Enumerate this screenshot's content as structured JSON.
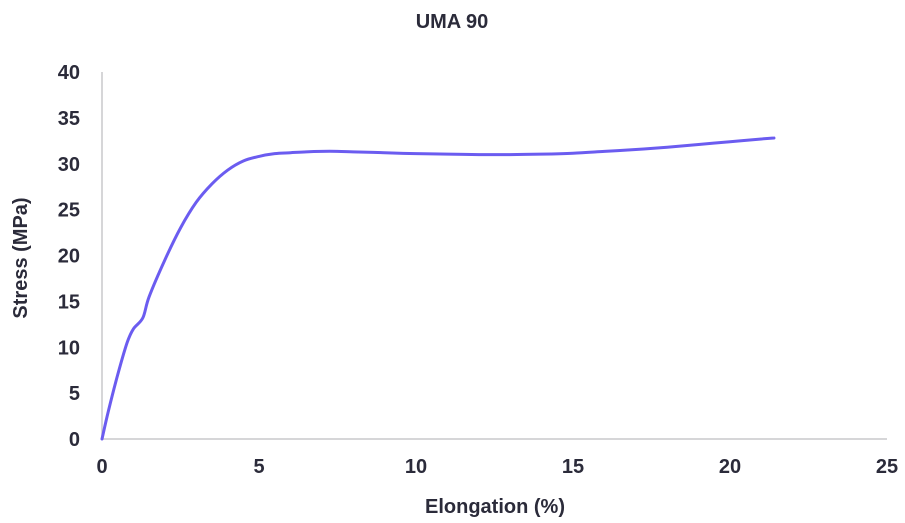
{
  "chart_data": {
    "type": "line",
    "title": "UMA 90",
    "xlabel": "Elongation (%)",
    "ylabel": "Stress (MPa)",
    "xlim": [
      0,
      25
    ],
    "ylim": [
      0,
      40
    ],
    "xticks": [
      "0",
      "5",
      "10",
      "15",
      "20",
      "25"
    ],
    "yticks": [
      "0",
      "5",
      "10",
      "15",
      "20",
      "25",
      "30",
      "35",
      "40"
    ],
    "grid": false,
    "legend": "none",
    "line_color": "#6b5cf0",
    "axis_color": "#c8c8cc",
    "series": [
      {
        "x": [
          0,
          0.2,
          0.5,
          0.8,
          1.0,
          1.3,
          1.5,
          2.0,
          2.5,
          3.0,
          3.5,
          4.0,
          4.5,
          5.0,
          5.5,
          6.0,
          6.5,
          7.0,
          7.5,
          8.0,
          9.0,
          10.0,
          11.0,
          12.0,
          13.0,
          14.0,
          15.0,
          16.0,
          17.0,
          18.0,
          19.0,
          20.0,
          21.0,
          21.4
        ],
        "y": [
          0,
          3,
          7,
          10.5,
          12,
          13.2,
          15.5,
          19.5,
          23,
          25.8,
          27.8,
          29.3,
          30.3,
          30.8,
          31.1,
          31.2,
          31.3,
          31.35,
          31.35,
          31.3,
          31.2,
          31.1,
          31.05,
          31.0,
          31.0,
          31.05,
          31.15,
          31.35,
          31.55,
          31.8,
          32.1,
          32.4,
          32.7,
          32.8
        ]
      }
    ]
  }
}
